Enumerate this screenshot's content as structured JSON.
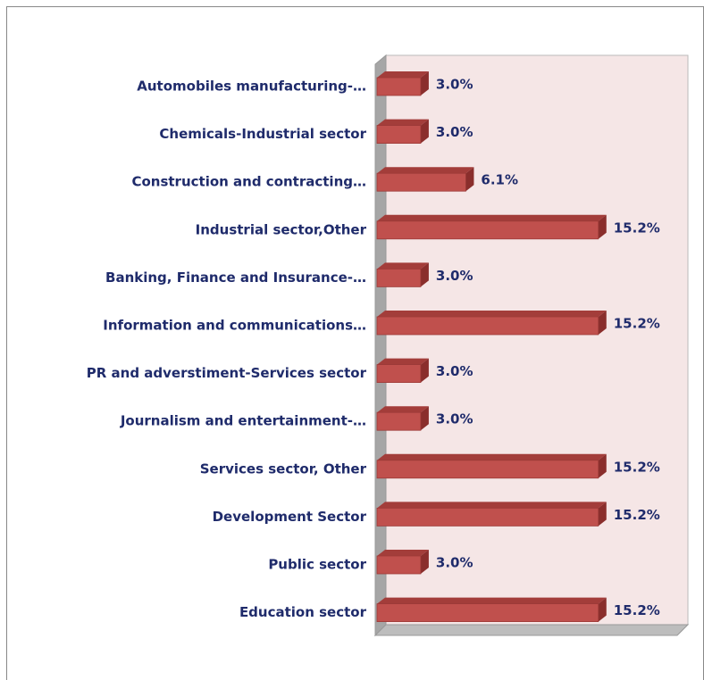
{
  "chart_data": {
    "type": "bar3d_horizontal",
    "categories": [
      "Automobiles manufacturing-…",
      "Chemicals-Industrial sector",
      "Construction and contracting…",
      "Industrial sector,Other",
      "Banking, Finance and Insurance-…",
      "Information and communications…",
      "PR and adverstiment-Services sector",
      "Journalism and entertainment-…",
      "Services sector, Other",
      "Development Sector",
      "Public sector",
      "Education sector"
    ],
    "values": [
      3.0,
      3.0,
      6.1,
      15.2,
      3.0,
      15.2,
      3.0,
      3.0,
      15.2,
      15.2,
      3.0,
      15.2
    ],
    "value_labels": [
      "3.0%",
      "3.0%",
      "6.1%",
      "15.2%",
      "3.0%",
      "15.2%",
      "3.0%",
      "3.0%",
      "15.2%",
      "15.2%",
      "3.0%",
      "15.2%"
    ],
    "color": "#c0504d"
  }
}
